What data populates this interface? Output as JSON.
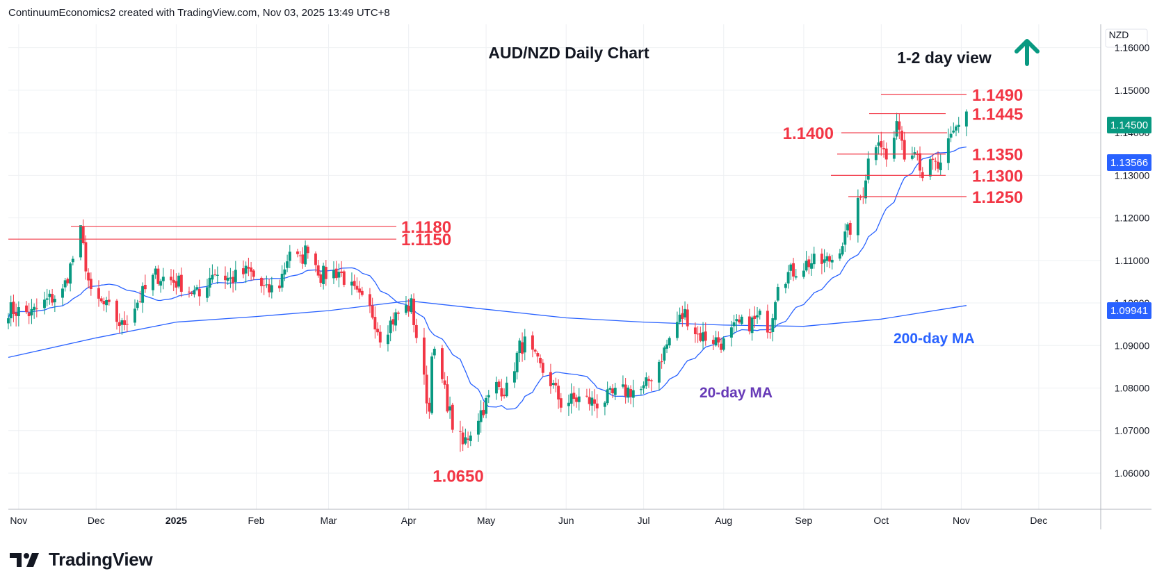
{
  "header": {
    "attribution": "ContinuumEconomics2 created with TradingView.com, Nov 03, 2025 13:49 UTC+8"
  },
  "footer": {
    "brand": "TradingView"
  },
  "colors": {
    "up": "#089981",
    "down": "#f23645",
    "ma": "#2962ff",
    "level": "#f23645",
    "ma20_label": "#673ab7",
    "arrow": "#089981",
    "grid": "#eef0f3"
  },
  "chart_data": {
    "type": "candlestick",
    "title": "AUD/NZD Daily Chart",
    "view_label": "1-2 day view",
    "view_direction": "up",
    "currency": "NZD",
    "y_ticks": [
      "1.16000",
      "1.15000",
      "1.14000",
      "1.13000",
      "1.12000",
      "1.11000",
      "1.10000",
      "1.09000",
      "1.08000",
      "1.07000",
      "1.06000"
    ],
    "ylim": [
      1.0515,
      1.1655
    ],
    "x_ticks": [
      "Nov",
      "Dec",
      "2025",
      "Feb",
      "Mar",
      "Apr",
      "May",
      "Jun",
      "Jul",
      "Aug",
      "Sep",
      "Oct",
      "Nov",
      "Dec"
    ],
    "last_price": "1.14500",
    "ma20_value": "1.13566",
    "ma200_value": "1.09941",
    "annotations": {
      "ma20_label": "20-day MA",
      "ma200_label": "200-day MA"
    },
    "levels": [
      {
        "label": "1.1490",
        "value": 1.149
      },
      {
        "label": "1.1445",
        "value": 1.1445
      },
      {
        "label": "1.1400",
        "value": 1.14
      },
      {
        "label": "1.1350",
        "value": 1.135
      },
      {
        "label": "1.1300",
        "value": 1.13
      },
      {
        "label": "1.1250",
        "value": 1.125
      },
      {
        "label": "1.1180",
        "value": 1.118
      },
      {
        "label": "1.1150",
        "value": 1.115
      },
      {
        "label": "1.0650",
        "value": 1.065
      }
    ],
    "close_anchors": [
      [
        "2024-10-28",
        1.0985
      ],
      [
        "2024-11-06",
        1.0975
      ],
      [
        "2024-11-12",
        1.1005
      ],
      [
        "2024-11-18",
        1.1025
      ],
      [
        "2024-11-25",
        1.1165
      ],
      [
        "2024-11-29",
        1.1015
      ],
      [
        "2024-12-06",
        1.0985
      ],
      [
        "2024-12-11",
        1.0945
      ],
      [
        "2024-12-16",
        1.0995
      ],
      [
        "2024-12-24",
        1.1065
      ],
      [
        "2025-01-03",
        1.1045
      ],
      [
        "2025-01-10",
        1.1015
      ],
      [
        "2025-01-15",
        1.1075
      ],
      [
        "2025-01-22",
        1.1055
      ],
      [
        "2025-01-29",
        1.1075
      ],
      [
        "2025-02-05",
        1.1025
      ],
      [
        "2025-02-10",
        1.1045
      ],
      [
        "2025-02-14",
        1.1125
      ],
      [
        "2025-02-18",
        1.1095
      ],
      [
        "2025-02-21",
        1.1135
      ],
      [
        "2025-02-26",
        1.1065
      ],
      [
        "2025-03-05",
        1.1075
      ],
      [
        "2025-03-12",
        1.1015
      ],
      [
        "2025-03-18",
        1.0975
      ],
      [
        "2025-03-21",
        1.0925
      ],
      [
        "2025-03-28",
        1.0975
      ],
      [
        "2025-04-02",
        1.0995
      ],
      [
        "2025-04-07",
        1.0815
      ],
      [
        "2025-04-09",
        1.0745
      ],
      [
        "2025-04-10",
        1.0895
      ],
      [
        "2025-04-14",
        1.0815
      ],
      [
        "2025-04-18",
        1.0715
      ],
      [
        "2025-04-22",
        1.0665
      ],
      [
        "2025-04-28",
        1.0735
      ],
      [
        "2025-05-05",
        1.0805
      ],
      [
        "2025-05-09",
        1.0795
      ],
      [
        "2025-05-14",
        1.0895
      ],
      [
        "2025-05-16",
        1.0905
      ],
      [
        "2025-05-21",
        1.0855
      ],
      [
        "2025-05-26",
        1.0815
      ],
      [
        "2025-05-30",
        1.0765
      ],
      [
        "2025-06-06",
        1.0775
      ],
      [
        "2025-06-13",
        1.0765
      ],
      [
        "2025-06-20",
        1.0785
      ],
      [
        "2025-06-25",
        1.0795
      ],
      [
        "2025-07-01",
        1.0795
      ],
      [
        "2025-07-08",
        1.0875
      ],
      [
        "2025-07-14",
        1.0955
      ],
      [
        "2025-07-17",
        1.0975
      ],
      [
        "2025-07-22",
        1.0925
      ],
      [
        "2025-07-28",
        1.0915
      ],
      [
        "2025-08-01",
        1.0905
      ],
      [
        "2025-08-06",
        1.0945
      ],
      [
        "2025-08-12",
        1.0955
      ],
      [
        "2025-08-15",
        1.0965
      ],
      [
        "2025-08-19",
        1.0945
      ],
      [
        "2025-08-22",
        1.1055
      ],
      [
        "2025-08-28",
        1.1075
      ],
      [
        "2025-09-03",
        1.1095
      ],
      [
        "2025-09-09",
        1.1095
      ],
      [
        "2025-09-12",
        1.1105
      ],
      [
        "2025-09-17",
        1.1155
      ],
      [
        "2025-09-19",
        1.1175
      ],
      [
        "2025-09-24",
        1.1265
      ],
      [
        "2025-09-26",
        1.1335
      ],
      [
        "2025-09-30",
        1.1395
      ],
      [
        "2025-10-03",
        1.1335
      ],
      [
        "2025-10-08",
        1.1425
      ],
      [
        "2025-10-10",
        1.1345
      ],
      [
        "2025-10-14",
        1.1375
      ],
      [
        "2025-10-17",
        1.1305
      ],
      [
        "2025-10-21",
        1.1325
      ],
      [
        "2025-10-24",
        1.1315
      ],
      [
        "2025-10-28",
        1.1385
      ],
      [
        "2025-10-31",
        1.1425
      ],
      [
        "2025-11-03",
        1.145
      ]
    ],
    "low_anchors": [
      [
        "2025-04-21",
        1.065
      ],
      [
        "2025-04-22",
        1.0652
      ]
    ],
    "high_anchors": [
      [
        "2025-10-08",
        1.1445
      ],
      [
        "2025-11-03",
        1.1455
      ],
      [
        "2024-11-25",
        1.1178
      ]
    ],
    "ma200_anchors": [
      [
        "2024-10-28",
        1.0872
      ],
      [
        "2024-12-01",
        1.0918
      ],
      [
        "2025-01-01",
        1.0955
      ],
      [
        "2025-02-01",
        1.0968
      ],
      [
        "2025-03-01",
        1.0982
      ],
      [
        "2025-04-01",
        1.1005
      ],
      [
        "2025-05-01",
        1.0985
      ],
      [
        "2025-06-01",
        1.0965
      ],
      [
        "2025-07-01",
        1.0955
      ],
      [
        "2025-08-01",
        1.0948
      ],
      [
        "2025-09-01",
        1.0945
      ],
      [
        "2025-10-01",
        1.0962
      ],
      [
        "2025-11-03",
        1.0994
      ]
    ]
  }
}
